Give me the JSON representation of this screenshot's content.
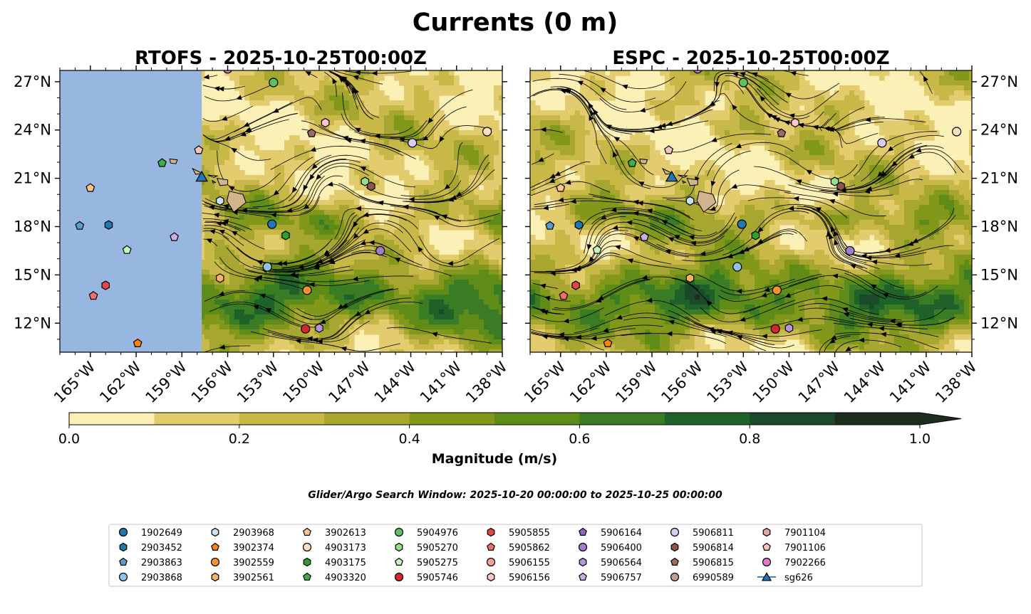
{
  "chart_data": {
    "type": "map",
    "title": "Currents (0 m)",
    "panels": [
      {
        "name": "rtofs",
        "title": "RTOFS - 2025-10-25T00:00Z",
        "ytick_side": "left"
      },
      {
        "name": "espc",
        "title": "ESPC - 2025-10-25T00:00Z",
        "ytick_side": "right"
      }
    ],
    "lon_range": [
      -167,
      -138
    ],
    "lat_range": [
      10.2,
      27.7
    ],
    "x_ticks": [
      -165,
      -162,
      -159,
      -156,
      -153,
      -150,
      -147,
      -144,
      -141,
      -138
    ],
    "x_tick_labels": [
      "165°W",
      "162°W",
      "159°W",
      "156°W",
      "153°W",
      "150°W",
      "147°W",
      "144°W",
      "141°W",
      "138°W"
    ],
    "y_ticks": [
      27,
      24,
      21,
      18,
      15,
      12
    ],
    "y_tick_labels": [
      "27°N",
      "24°N",
      "21°N",
      "18°N",
      "15°N",
      "12°N"
    ],
    "colorbar": {
      "label": "Magnitude (m/s)",
      "min": 0.0,
      "max": 1.0,
      "levels": [
        0.0,
        0.1,
        0.2,
        0.3,
        0.4,
        0.5,
        0.6,
        0.7,
        0.8,
        0.9,
        1.0
      ],
      "colors": [
        "#fbf0b5",
        "#e2cc6e",
        "#c8b848",
        "#a6a630",
        "#82981a",
        "#5f8b19",
        "#3a7c24",
        "#1e6229",
        "#1b4a2a",
        "#1c2c1e"
      ],
      "ticks": [
        0.0,
        0.2,
        0.4,
        0.6,
        0.8,
        1.0
      ],
      "tick_labels": [
        "0.0",
        "0.2",
        "0.4",
        "0.6",
        "0.8",
        "1.0"
      ],
      "extend": "max"
    },
    "subtitle": "Glider/Argo Search Window: 2025-10-20 00:00:00 to 2025-10-25 00:00:00",
    "rtofs_coverage_west_lon": -157.7,
    "colors": {
      "land": "#d2b48c",
      "nodata": "#97b6e0"
    },
    "legend": [
      {
        "label": "1902649",
        "marker": "circle",
        "color": "#1f77b4"
      },
      {
        "label": "2903452",
        "marker": "hexagon",
        "color": "#1f77b4"
      },
      {
        "label": "2903863",
        "marker": "pentagon",
        "color": "#5b9bd5"
      },
      {
        "label": "2903868",
        "marker": "circle",
        "color": "#8fc4e8"
      },
      {
        "label": "2903968",
        "marker": "hexagon",
        "color": "#c6e2f3"
      },
      {
        "label": "3902374",
        "marker": "pentagon",
        "color": "#ff7f0e"
      },
      {
        "label": "3902559",
        "marker": "circle",
        "color": "#f8912f"
      },
      {
        "label": "3902561",
        "marker": "hexagon",
        "color": "#fbb068"
      },
      {
        "label": "3902613",
        "marker": "pentagon",
        "color": "#fcc590"
      },
      {
        "label": "4903173",
        "marker": "circle",
        "color": "#fde0c1"
      },
      {
        "label": "4903175",
        "marker": "hexagon",
        "color": "#2ca02c"
      },
      {
        "label": "4903320",
        "marker": "pentagon",
        "color": "#3bb04a"
      },
      {
        "label": "5904976",
        "marker": "circle",
        "color": "#5cc162"
      },
      {
        "label": "5905270",
        "marker": "hexagon",
        "color": "#98df8a"
      },
      {
        "label": "5905275",
        "marker": "pentagon",
        "color": "#c8f5be"
      },
      {
        "label": "5905746",
        "marker": "circle",
        "color": "#d62728"
      },
      {
        "label": "5905855",
        "marker": "hexagon",
        "color": "#e04848"
      },
      {
        "label": "5905862",
        "marker": "pentagon",
        "color": "#ec6f6a"
      },
      {
        "label": "5906155",
        "marker": "circle",
        "color": "#f79f9c"
      },
      {
        "label": "5906156",
        "marker": "hexagon",
        "color": "#fcc8c6"
      },
      {
        "label": "5906164",
        "marker": "pentagon",
        "color": "#9467bd"
      },
      {
        "label": "5906400",
        "marker": "circle",
        "color": "#a47cca"
      },
      {
        "label": "5906564",
        "marker": "hexagon",
        "color": "#b796d8"
      },
      {
        "label": "5906757",
        "marker": "pentagon",
        "color": "#c9aee4"
      },
      {
        "label": "5906811",
        "marker": "circle",
        "color": "#dccbf0"
      },
      {
        "label": "5906814",
        "marker": "hexagon",
        "color": "#8c564b"
      },
      {
        "label": "5906815",
        "marker": "pentagon",
        "color": "#a06a5e"
      },
      {
        "label": "6990589",
        "marker": "circle",
        "color": "#c49c94"
      },
      {
        "label": "7901104",
        "marker": "hexagon",
        "color": "#e0a89e"
      },
      {
        "label": "7901106",
        "marker": "pentagon",
        "color": "#f5c7bb"
      },
      {
        "label": "7902266",
        "marker": "circle",
        "color": "#e377c2"
      },
      {
        "label": "sg626",
        "marker": "triangle",
        "color": "#1f77b4"
      }
    ],
    "observations": [
      {
        "id": "7902266",
        "lon": -156.0,
        "lat": 27.8
      },
      {
        "id": "5904976",
        "lon": -153.0,
        "lat": 26.95
      },
      {
        "id": "5906156",
        "lon": -149.6,
        "lat": 24.45
      },
      {
        "id": "5906815",
        "lon": -150.5,
        "lat": 23.8
      },
      {
        "id": "4903173",
        "lon": -139.0,
        "lat": 23.9
      },
      {
        "id": "5906811",
        "lon": -143.9,
        "lat": 23.2
      },
      {
        "id": "7901106",
        "lon": -157.9,
        "lat": 22.75
      },
      {
        "id": "4903320",
        "lon": -160.3,
        "lat": 21.95
      },
      {
        "id": "sg626",
        "lon": -157.7,
        "lat": 21.1
      },
      {
        "id": "5905270",
        "lon": -147.0,
        "lat": 20.8
      },
      {
        "id": "5906814",
        "lon": -146.6,
        "lat": 20.5
      },
      {
        "id": "3902613",
        "lon": -165.0,
        "lat": 20.4
      },
      {
        "id": "2903968",
        "lon": -156.5,
        "lat": 19.6
      },
      {
        "id": "2903863",
        "lon": -165.7,
        "lat": 18.05
      },
      {
        "id": "2903452",
        "lon": -163.8,
        "lat": 18.1
      },
      {
        "id": "1902649",
        "lon": -153.1,
        "lat": 18.15
      },
      {
        "id": "4903175",
        "lon": -152.2,
        "lat": 17.45
      },
      {
        "id": "5906757",
        "lon": -159.5,
        "lat": 17.35
      },
      {
        "id": "5905275",
        "lon": -162.6,
        "lat": 16.55
      },
      {
        "id": "5906400",
        "lon": -146.0,
        "lat": 16.5
      },
      {
        "id": "2903868",
        "lon": -153.4,
        "lat": 15.5
      },
      {
        "id": "3902561",
        "lon": -156.5,
        "lat": 14.8
      },
      {
        "id": "3902559",
        "lon": -150.8,
        "lat": 14.05
      },
      {
        "id": "5905855",
        "lon": -164.0,
        "lat": 14.35
      },
      {
        "id": "5905862",
        "lon": -164.8,
        "lat": 13.7
      },
      {
        "id": "5905746",
        "lon": -150.9,
        "lat": 11.65
      },
      {
        "id": "5906564",
        "lon": -150.0,
        "lat": 11.7
      },
      {
        "id": "3902374",
        "lon": -161.9,
        "lat": 10.75
      }
    ]
  }
}
